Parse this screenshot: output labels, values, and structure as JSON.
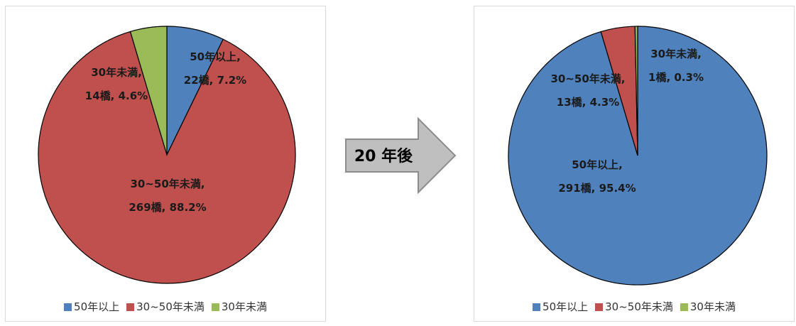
{
  "arrow": {
    "label": "20 年後"
  },
  "chart_data": [
    {
      "type": "pie",
      "legend_position": "bottom",
      "categories": [
        "50年以上",
        "30~50年未満",
        "30年未満"
      ],
      "values": [
        22,
        269,
        14
      ],
      "percentages": [
        7.2,
        88.2,
        4.6
      ],
      "colors": [
        "#4f81bd",
        "#c0504d",
        "#9bbb59"
      ],
      "labels": [
        [
          "50年以上,",
          "22橋, 7.2%"
        ],
        [
          "30~50年未満,",
          "269橋, 88.2%"
        ],
        [
          "30年未満,",
          "14橋, 4.6%"
        ]
      ]
    },
    {
      "type": "pie",
      "legend_position": "bottom",
      "categories": [
        "50年以上",
        "30~50年未満",
        "30年未満"
      ],
      "values": [
        291,
        13,
        1
      ],
      "percentages": [
        95.4,
        4.3,
        0.3
      ],
      "colors": [
        "#4f81bd",
        "#c0504d",
        "#9bbb59"
      ],
      "labels": [
        [
          "50年以上,",
          "291橋, 95.4%"
        ],
        [
          "30~50年未満,",
          "13橋, 4.3%"
        ],
        [
          "30年未満,",
          "1橋, 0.3%"
        ]
      ]
    }
  ]
}
